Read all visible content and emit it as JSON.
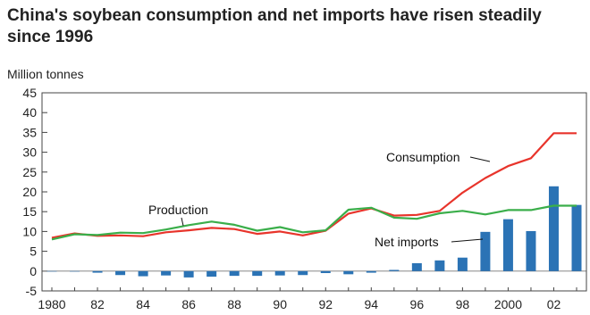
{
  "chart_data": {
    "type": "bar+line",
    "title": "China's soybean consumption and net imports have risen steadily since 1996",
    "ylabel": "Million tonnes",
    "ylim": [
      -5,
      45
    ],
    "yticks": [
      "45",
      "40",
      "35",
      "30",
      "25",
      "20",
      "15",
      "10",
      "5",
      "0",
      "-5"
    ],
    "xtick_labels": [
      "1980",
      "82",
      "84",
      "86",
      "88",
      "90",
      "92",
      "94",
      "96",
      "98",
      "2000",
      "02"
    ],
    "x": [
      1980,
      1981,
      1982,
      1983,
      1984,
      1985,
      1986,
      1987,
      1988,
      1989,
      1990,
      1991,
      1992,
      1993,
      1994,
      1995,
      1996,
      1997,
      1998,
      1999,
      2000,
      2001,
      2002,
      2003
    ],
    "series": [
      {
        "name": "Consumption",
        "kind": "line",
        "color": "#e8342b",
        "values": [
          8.4,
          9.5,
          8.9,
          9.0,
          8.8,
          9.8,
          10.3,
          10.9,
          10.6,
          9.4,
          10.0,
          9.0,
          10.2,
          14.5,
          15.8,
          14.0,
          14.2,
          15.2,
          19.8,
          23.5,
          26.5,
          28.5,
          34.8,
          34.8
        ]
      },
      {
        "name": "Production",
        "kind": "line",
        "color": "#3aae4a",
        "values": [
          8.0,
          9.3,
          9.1,
          9.7,
          9.6,
          10.5,
          11.6,
          12.5,
          11.7,
          10.2,
          11.1,
          9.8,
          10.3,
          15.5,
          16.0,
          13.5,
          13.2,
          14.6,
          15.2,
          14.3,
          15.4,
          15.4,
          16.5,
          16.5
        ]
      },
      {
        "name": "Net imports",
        "kind": "bar",
        "color": "#2b73b5",
        "values": [
          -0.1,
          -0.1,
          -0.4,
          -1.0,
          -1.3,
          -1.1,
          -1.6,
          -1.4,
          -1.2,
          -1.2,
          -1.1,
          -1.0,
          -0.5,
          -0.8,
          -0.4,
          0.3,
          2.0,
          2.7,
          3.4,
          9.9,
          13.1,
          10.1,
          21.4,
          16.7
        ]
      }
    ],
    "annotations": {
      "consumption": "Consumption",
      "production": "Production",
      "net_imports": "Net imports"
    },
    "grid": false,
    "legend": "none (inline labels)"
  }
}
